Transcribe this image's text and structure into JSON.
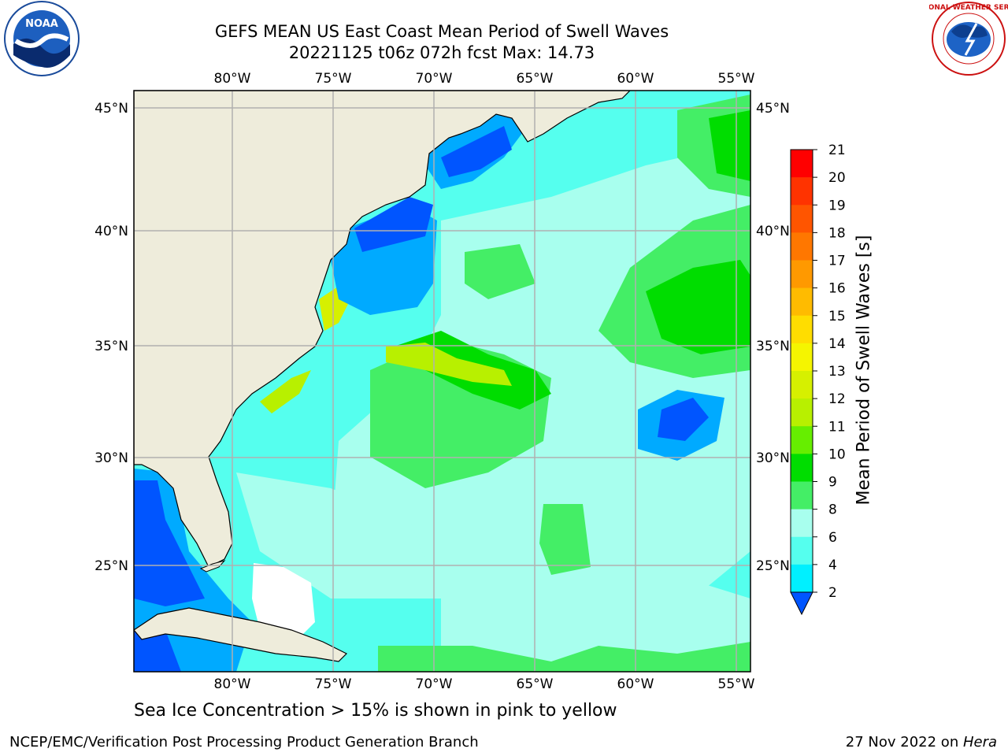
{
  "title": {
    "line1": "GEFS MEAN US East Coast Mean Period of Swell Waves",
    "line2": "20221125 t06z 072h fcst   Max: 14.73"
  },
  "map": {
    "lon_labels": [
      "80°W",
      "75°W",
      "70°W",
      "65°W",
      "60°W",
      "55°W"
    ],
    "lat_labels": [
      "45°N",
      "40°N",
      "35°N",
      "30°N",
      "25°N"
    ],
    "lon_range": [
      -85,
      -54.5
    ],
    "lat_range": [
      20.5,
      46
    ],
    "land_color": "#eeecdb",
    "grid_color": "#b0b0b0"
  },
  "colorbar": {
    "title": "Mean Period of Swell Waves [s]",
    "ticks": [
      "21",
      "20",
      "19",
      "18",
      "17",
      "16",
      "15",
      "14",
      "13",
      "12",
      "11",
      "10",
      "9",
      "8",
      "6",
      "4",
      "2"
    ],
    "colors": [
      "#ff0000",
      "#ff3300",
      "#ff5500",
      "#ff7700",
      "#ff9900",
      "#ffbb00",
      "#ffdd00",
      "#f5f500",
      "#d6f000",
      "#b8f000",
      "#66ee00",
      "#00dd00",
      "#44ee66",
      "#a8ffee",
      "#55ffee",
      "#00f0ff",
      "#00aaff",
      "#0055ff"
    ]
  },
  "note": "Sea Ice Concentration > 15% is shown in pink to yellow",
  "footer": {
    "left": "NCEP/EMC/Verification Post Processing Product Generation Branch",
    "right_prefix": "27 Nov 2022 on ",
    "right_host": "Hera"
  },
  "logos": {
    "noaa": "NOAA",
    "nws_ring": "NATIONAL WEATHER SERVICE"
  }
}
